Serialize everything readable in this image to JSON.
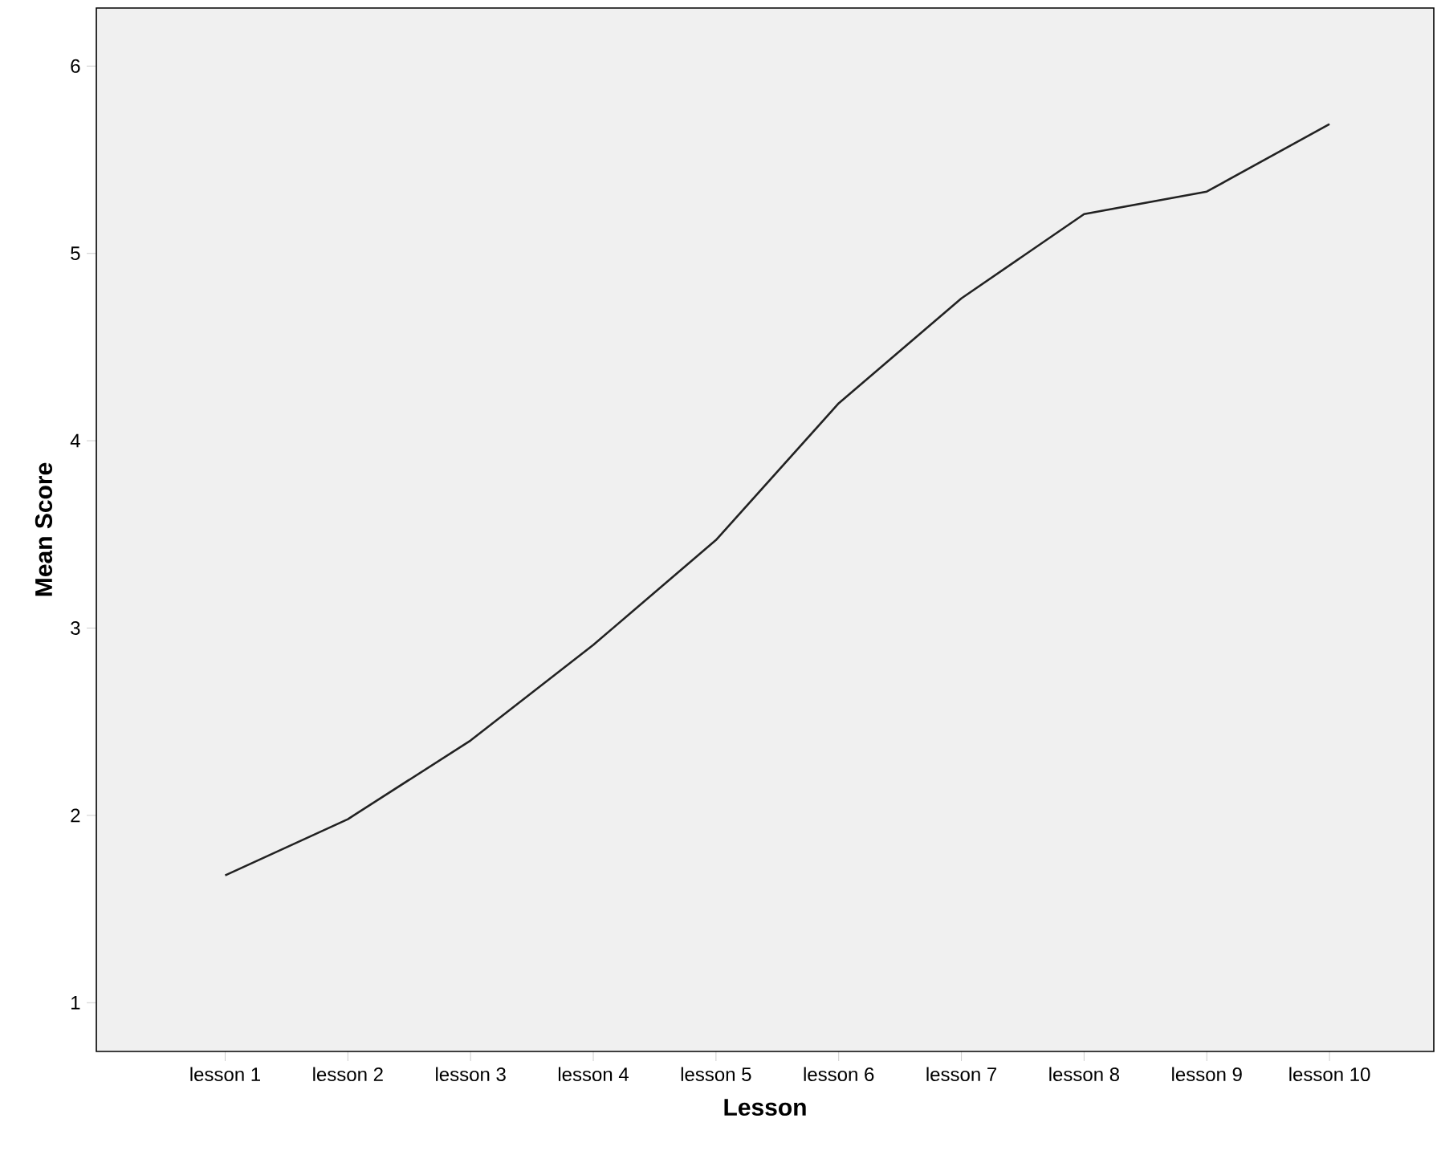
{
  "chart_data": {
    "type": "line",
    "xlabel": "Lesson",
    "ylabel": "Mean Score",
    "categories": [
      "lesson 1",
      "lesson 2",
      "lesson 3",
      "lesson 4",
      "lesson 5",
      "lesson 6",
      "lesson 7",
      "lesson 8",
      "lesson 9",
      "lesson 10"
    ],
    "series": [
      {
        "color": "#222222",
        "values": [
          1.68,
          1.98,
          2.4,
          2.91,
          3.47,
          4.2,
          4.76,
          5.21,
          5.33,
          5.69
        ]
      }
    ],
    "ylim": [
      0.74,
      6.31
    ],
    "yticks": [
      1,
      2,
      3,
      4,
      5,
      6
    ],
    "grid": false,
    "marker": "none",
    "line_style": "solid"
  }
}
